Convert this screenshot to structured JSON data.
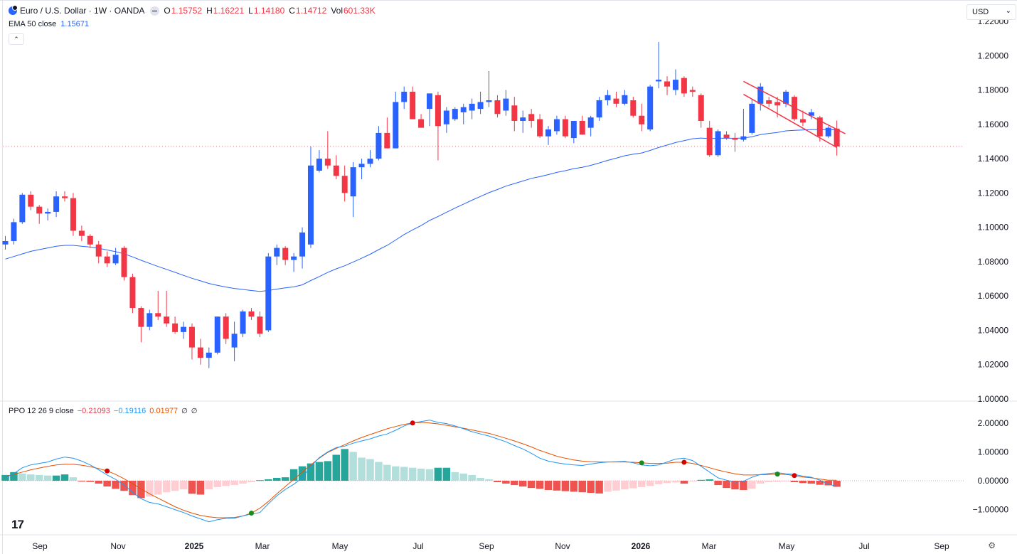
{
  "header": {
    "symbol": "Euro / U.S. Dollar · 1W · OANDA",
    "o_label": "O",
    "o": "1.15752",
    "h_label": "H",
    "h": "1.16221",
    "l_label": "L",
    "l": "1.14180",
    "c_label": "C",
    "c": "1.14712",
    "vol_label": "Vol",
    "vol": "601.33K"
  },
  "ema": {
    "label": "EMA 50 close",
    "value": "1.15671",
    "color": "#2962ff"
  },
  "ppo": {
    "label": "PPO 12 26 9 close",
    "v1": "−0.21093",
    "v2": "−0.19116",
    "v3": "0.01977",
    "icon1": "∅",
    "icon2": "∅"
  },
  "currency": {
    "value": "USD"
  },
  "colors": {
    "up": "#2962ff",
    "down": "#f23645",
    "ema": "#2962ff",
    "ppo_line": "#2196f3",
    "signal": "#e65100",
    "hist_pos_strong": "#26a69a",
    "hist_pos_weak": "#b2dfdb",
    "hist_neg_strong": "#ef5350",
    "hist_neg_weak": "#ffcdd2",
    "channel": "#f23645"
  },
  "chart_data": {
    "type": "candlestick",
    "price_axis": {
      "ticks": [
        "1.22000",
        "1.20000",
        "1.18000",
        "1.16000",
        "1.14000",
        "1.12000",
        "1.10000",
        "1.08000",
        "1.06000",
        "1.04000",
        "1.02000",
        "1.00000"
      ],
      "range": [
        1.0,
        1.22
      ]
    },
    "ppo_axis": {
      "ticks": [
        "2.00000",
        "1.00000",
        "0.00000",
        "−1.00000"
      ],
      "range": [
        -1.6,
        2.4
      ]
    },
    "x_axis_labels": [
      {
        "label": "Sep",
        "bold": false
      },
      {
        "label": "Nov",
        "bold": false
      },
      {
        "label": "2025",
        "bold": true
      },
      {
        "label": "Mar",
        "bold": false
      },
      {
        "label": "May",
        "bold": false
      },
      {
        "label": "Jul",
        "bold": false
      },
      {
        "label": "Sep",
        "bold": false
      },
      {
        "label": "Nov",
        "bold": false
      },
      {
        "label": "2026",
        "bold": true
      },
      {
        "label": "Mar",
        "bold": false
      },
      {
        "label": "May",
        "bold": false
      },
      {
        "label": "Jul",
        "bold": false
      },
      {
        "label": "Sep",
        "bold": false
      }
    ],
    "last_close": 1.14712,
    "candles": [
      [
        1.09,
        1.095,
        1.087,
        1.092
      ],
      [
        1.092,
        1.105,
        1.09,
        1.103
      ],
      [
        1.103,
        1.12,
        1.102,
        1.119
      ],
      [
        1.119,
        1.121,
        1.11,
        1.112
      ],
      [
        1.112,
        1.113,
        1.102,
        1.108
      ],
      [
        1.108,
        1.111,
        1.104,
        1.109
      ],
      [
        1.109,
        1.121,
        1.106,
        1.118
      ],
      [
        1.118,
        1.121,
        1.115,
        1.117
      ],
      [
        1.117,
        1.12,
        1.095,
        1.098
      ],
      [
        1.098,
        1.101,
        1.092,
        1.095
      ],
      [
        1.095,
        1.096,
        1.088,
        1.09
      ],
      [
        1.09,
        1.092,
        1.079,
        1.083
      ],
      [
        1.083,
        1.086,
        1.077,
        1.079
      ],
      [
        1.079,
        1.088,
        1.078,
        1.084
      ],
      [
        1.088,
        1.089,
        1.069,
        1.071
      ],
      [
        1.071,
        1.073,
        1.05,
        1.053
      ],
      [
        1.053,
        1.054,
        1.033,
        1.042
      ],
      [
        1.042,
        1.052,
        1.04,
        1.05
      ],
      [
        1.05,
        1.063,
        1.046,
        1.048
      ],
      [
        1.048,
        1.063,
        1.042,
        1.044
      ],
      [
        1.044,
        1.048,
        1.038,
        1.039
      ],
      [
        1.039,
        1.045,
        1.035,
        1.042
      ],
      [
        1.042,
        1.044,
        1.023,
        1.03
      ],
      [
        1.03,
        1.035,
        1.02,
        1.024
      ],
      [
        1.024,
        1.03,
        1.018,
        1.027
      ],
      [
        1.027,
        1.048,
        1.026,
        1.048
      ],
      [
        1.048,
        1.05,
        1.032,
        1.035
      ],
      [
        1.03,
        1.045,
        1.022,
        1.038
      ],
      [
        1.038,
        1.052,
        1.036,
        1.051
      ],
      [
        1.051,
        1.053,
        1.046,
        1.048
      ],
      [
        1.048,
        1.051,
        1.036,
        1.038
      ],
      [
        1.04,
        1.085,
        1.039,
        1.083
      ],
      [
        1.083,
        1.09,
        1.078,
        1.088
      ],
      [
        1.088,
        1.089,
        1.078,
        1.081
      ],
      [
        1.081,
        1.085,
        1.074,
        1.083
      ],
      [
        1.083,
        1.1,
        1.076,
        1.097
      ],
      [
        1.09,
        1.147,
        1.088,
        1.136
      ],
      [
        1.133,
        1.145,
        1.132,
        1.14
      ],
      [
        1.14,
        1.156,
        1.134,
        1.136
      ],
      [
        1.136,
        1.142,
        1.128,
        1.13
      ],
      [
        1.13,
        1.136,
        1.115,
        1.12
      ],
      [
        1.118,
        1.138,
        1.106,
        1.135
      ],
      [
        1.135,
        1.14,
        1.128,
        1.137
      ],
      [
        1.137,
        1.145,
        1.135,
        1.14
      ],
      [
        1.14,
        1.159,
        1.139,
        1.155
      ],
      [
        1.155,
        1.164,
        1.146,
        1.146
      ],
      [
        1.146,
        1.179,
        1.146,
        1.173
      ],
      [
        1.173,
        1.182,
        1.169,
        1.179
      ],
      [
        1.179,
        1.182,
        1.163,
        1.163
      ],
      [
        1.163,
        1.166,
        1.158,
        1.158
      ],
      [
        1.169,
        1.178,
        1.159,
        1.178
      ],
      [
        1.177,
        1.179,
        1.139,
        1.159
      ],
      [
        1.16,
        1.17,
        1.155,
        1.168
      ],
      [
        1.163,
        1.17,
        1.162,
        1.169
      ],
      [
        1.167,
        1.172,
        1.16,
        1.17
      ],
      [
        1.168,
        1.175,
        1.163,
        1.172
      ],
      [
        1.169,
        1.179,
        1.166,
        1.173
      ],
      [
        1.173,
        1.191,
        1.17,
        1.174
      ],
      [
        1.174,
        1.177,
        1.164,
        1.166
      ],
      [
        1.168,
        1.18,
        1.165,
        1.175
      ],
      [
        1.171,
        1.176,
        1.156,
        1.162
      ],
      [
        1.162,
        1.168,
        1.155,
        1.164
      ],
      [
        1.166,
        1.169,
        1.158,
        1.162
      ],
      [
        1.163,
        1.166,
        1.152,
        1.153
      ],
      [
        1.153,
        1.159,
        1.148,
        1.157
      ],
      [
        1.156,
        1.165,
        1.154,
        1.163
      ],
      [
        1.163,
        1.165,
        1.152,
        1.153
      ],
      [
        1.152,
        1.162,
        1.149,
        1.162
      ],
      [
        1.162,
        1.165,
        1.154,
        1.154
      ],
      [
        1.158,
        1.165,
        1.153,
        1.164
      ],
      [
        1.164,
        1.176,
        1.162,
        1.174
      ],
      [
        1.174,
        1.18,
        1.171,
        1.177
      ],
      [
        1.175,
        1.179,
        1.17,
        1.172
      ],
      [
        1.172,
        1.18,
        1.171,
        1.177
      ],
      [
        1.174,
        1.176,
        1.164,
        1.165
      ],
      [
        1.165,
        1.172,
        1.156,
        1.16
      ],
      [
        1.157,
        1.183,
        1.156,
        1.182
      ],
      [
        1.185,
        1.208,
        1.181,
        1.186
      ],
      [
        1.185,
        1.188,
        1.177,
        1.182
      ],
      [
        1.18,
        1.192,
        1.177,
        1.186
      ],
      [
        1.187,
        1.188,
        1.176,
        1.178
      ],
      [
        1.18,
        1.182,
        1.176,
        1.179
      ],
      [
        1.177,
        1.178,
        1.158,
        1.162
      ],
      [
        1.158,
        1.162,
        1.141,
        1.142
      ],
      [
        1.142,
        1.157,
        1.141,
        1.156
      ],
      [
        1.154,
        1.156,
        1.151,
        1.152
      ],
      [
        1.152,
        1.155,
        1.144,
        1.151
      ],
      [
        1.151,
        1.169,
        1.15,
        1.153
      ],
      [
        1.155,
        1.175,
        1.154,
        1.172
      ],
      [
        1.172,
        1.184,
        1.168,
        1.182
      ],
      [
        1.174,
        1.176,
        1.17,
        1.172
      ],
      [
        1.173,
        1.176,
        1.164,
        1.171
      ],
      [
        1.172,
        1.18,
        1.17,
        1.179
      ],
      [
        1.176,
        1.177,
        1.162,
        1.163
      ],
      [
        1.163,
        1.168,
        1.159,
        1.161
      ],
      [
        1.165,
        1.169,
        1.163,
        1.167
      ],
      [
        1.164,
        1.165,
        1.15,
        1.153
      ],
      [
        1.153,
        1.159,
        1.152,
        1.158
      ],
      [
        1.1575,
        1.1622,
        1.1418,
        1.1471
      ]
    ],
    "ema50": [
      1.0815,
      1.083,
      1.0845,
      1.086,
      1.087,
      1.088,
      1.089,
      1.0895,
      1.0895,
      1.089,
      1.0885,
      1.0878,
      1.0868,
      1.0858,
      1.0845,
      1.0828,
      1.0808,
      1.079,
      1.0772,
      1.0755,
      1.0738,
      1.072,
      1.0703,
      1.0688,
      1.0673,
      1.0662,
      1.0652,
      1.0644,
      1.0638,
      1.0632,
      1.0627,
      1.0632,
      1.064,
      1.0647,
      1.0653,
      1.0665,
      1.069,
      1.0713,
      1.0737,
      1.0758,
      1.0776,
      1.0798,
      1.082,
      1.0843,
      1.087,
      1.0895,
      1.0926,
      1.0958,
      1.0985,
      1.101,
      1.104,
      1.1063,
      1.1088,
      1.1112,
      1.1135,
      1.1158,
      1.118,
      1.1202,
      1.122,
      1.124,
      1.1255,
      1.127,
      1.1285,
      1.1295,
      1.1307,
      1.132,
      1.133,
      1.1342,
      1.135,
      1.1361,
      1.1375,
      1.139,
      1.1403,
      1.1417,
      1.1426,
      1.1433,
      1.1448,
      1.1465,
      1.1479,
      1.1494,
      1.1505,
      1.1516,
      1.152,
      1.1517,
      1.1519,
      1.1519,
      1.1519,
      1.152,
      1.1528,
      1.154,
      1.1547,
      1.1553,
      1.1562,
      1.1565,
      1.1567,
      1.157,
      1.1568,
      1.1569,
      1.1567
    ],
    "ppo_line": [
      0.1,
      0.25,
      0.45,
      0.55,
      0.6,
      0.65,
      0.75,
      0.82,
      0.78,
      0.68,
      0.55,
      0.38,
      0.2,
      0.05,
      -0.15,
      -0.4,
      -0.62,
      -0.75,
      -0.8,
      -0.9,
      -1.0,
      -1.1,
      -1.22,
      -1.32,
      -1.42,
      -1.35,
      -1.3,
      -1.3,
      -1.22,
      -1.15,
      -1.1,
      -0.8,
      -0.52,
      -0.3,
      -0.12,
      0.1,
      0.5,
      0.8,
      1.0,
      1.15,
      1.2,
      1.3,
      1.38,
      1.45,
      1.55,
      1.62,
      1.75,
      1.9,
      2.0,
      2.05,
      2.1,
      2.02,
      1.98,
      1.9,
      1.8,
      1.7,
      1.62,
      1.55,
      1.45,
      1.35,
      1.22,
      1.1,
      0.95,
      0.78,
      0.68,
      0.62,
      0.58,
      0.55,
      0.53,
      0.58,
      0.62,
      0.65,
      0.66,
      0.67,
      0.62,
      0.55,
      0.52,
      0.55,
      0.65,
      0.75,
      0.78,
      0.7,
      0.5,
      0.3,
      0.1,
      0.02,
      -0.05,
      -0.02,
      0.12,
      0.22,
      0.25,
      0.28,
      0.24,
      0.22,
      0.16,
      0.12,
      0.02,
      -0.12,
      -0.19
    ],
    "signal_line": [
      0.15,
      0.22,
      0.3,
      0.38,
      0.44,
      0.5,
      0.55,
      0.57,
      0.57,
      0.54,
      0.49,
      0.42,
      0.34,
      0.22,
      0.07,
      -0.1,
      -0.28,
      -0.45,
      -0.6,
      -0.75,
      -0.9,
      -1.02,
      -1.12,
      -1.2,
      -1.25,
      -1.28,
      -1.28,
      -1.27,
      -1.22,
      -1.12,
      -0.95,
      -0.72,
      -0.45,
      -0.2,
      0.05,
      0.3,
      0.55,
      0.78,
      0.98,
      1.12,
      1.25,
      1.38,
      1.5,
      1.6,
      1.7,
      1.8,
      1.88,
      1.95,
      2.0,
      2.02,
      2.0,
      1.97,
      1.92,
      1.87,
      1.82,
      1.76,
      1.7,
      1.64,
      1.56,
      1.47,
      1.38,
      1.28,
      1.17,
      1.05,
      0.95,
      0.85,
      0.78,
      0.72,
      0.68,
      0.66,
      0.65,
      0.65,
      0.65,
      0.65,
      0.64,
      0.62,
      0.6,
      0.6,
      0.61,
      0.64,
      0.64,
      0.6,
      0.53,
      0.45,
      0.37,
      0.3,
      0.24,
      0.2,
      0.2,
      0.21,
      0.22,
      0.23,
      0.22,
      0.18,
      0.13,
      0.1,
      0.06,
      0.02,
      0.02
    ],
    "histogram": [
      0.2,
      0.3,
      0.25,
      0.22,
      0.2,
      0.18,
      0.18,
      0.22,
      0.12,
      -0.02,
      -0.04,
      -0.1,
      -0.2,
      -0.28,
      -0.35,
      -0.5,
      -0.6,
      -0.55,
      -0.48,
      -0.4,
      -0.35,
      -0.3,
      -0.45,
      -0.48,
      -0.3,
      -0.22,
      -0.18,
      -0.15,
      -0.1,
      -0.05,
      0.02,
      0.05,
      0.1,
      0.12,
      0.4,
      0.5,
      0.6,
      0.65,
      0.68,
      0.9,
      1.1,
      1.0,
      0.8,
      0.75,
      0.65,
      0.55,
      0.5,
      0.48,
      0.45,
      0.42,
      0.4,
      0.45,
      0.45,
      0.3,
      0.25,
      0.2,
      0.1,
      0.05,
      -0.05,
      -0.1,
      -0.15,
      -0.2,
      -0.25,
      -0.28,
      -0.32,
      -0.34,
      -0.36,
      -0.38,
      -0.4,
      -0.42,
      -0.44,
      -0.38,
      -0.34,
      -0.3,
      -0.26,
      -0.22,
      -0.18,
      -0.12,
      -0.08,
      -0.06,
      -0.1,
      -0.02,
      0.03,
      0.05,
      -0.15,
      -0.25,
      -0.3,
      -0.32,
      -0.28,
      -0.1,
      -0.05,
      -0.04,
      -0.02,
      -0.05,
      -0.08,
      -0.1,
      -0.14,
      -0.16,
      -0.21
    ],
    "cross_markers": [
      {
        "index": 12,
        "type": "bearish"
      },
      {
        "index": 29,
        "type": "bullish"
      },
      {
        "index": 48,
        "type": "bearish"
      },
      {
        "index": 75,
        "type": "bullish"
      },
      {
        "index": 80,
        "type": "bearish"
      },
      {
        "index": 91,
        "type": "bullish"
      },
      {
        "index": 93,
        "type": "bearish"
      }
    ],
    "channel": {
      "upper": [
        {
          "index": 87,
          "price": 1.185
        },
        {
          "index": 99,
          "price": 1.1545
        }
      ],
      "lower": [
        {
          "index": 87,
          "price": 1.1775
        },
        {
          "index": 98,
          "price": 1.1465
        }
      ]
    }
  }
}
